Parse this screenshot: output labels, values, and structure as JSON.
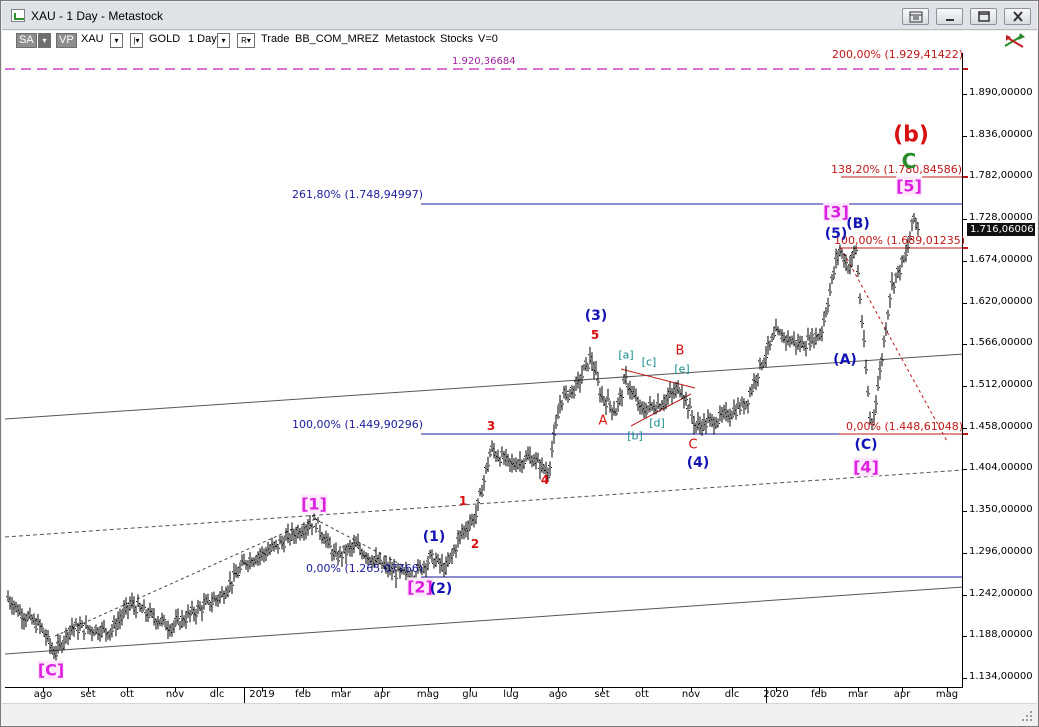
{
  "window": {
    "title": "XAU - 1 Day - Metastock"
  },
  "toolbar": {
    "sa_label": "SA",
    "vp_label": "VP",
    "symbol": "XAU",
    "security_name": "GOLD",
    "period": "1 Day",
    "r_label": "R",
    "mode": "Trade",
    "source": "BB_COM_MREZ",
    "app_name": "Metastock",
    "category": "Stocks",
    "volume": "V=0"
  },
  "chart": {
    "last_price": "1.716,06006",
    "y_labels": [
      "1.890,00000",
      "1.836,00000",
      "1.782,00000",
      "1.728,00000",
      "1.674,00000",
      "1.620,00000",
      "1.566,00000",
      "1.512,00000",
      "1.458,00000",
      "1.404,00000",
      "1.350,00000",
      "1.296,00000",
      "1.242,00000",
      "1.188,00000",
      "1.134,00000"
    ],
    "x_labels": [
      "ago",
      "set",
      "ott",
      "nov",
      "dic",
      "2019",
      "feb",
      "mar",
      "apr",
      "mag",
      "giu",
      "lug",
      "ago",
      "set",
      "ott",
      "nov",
      "dic",
      "2020",
      "feb",
      "mar",
      "apr",
      "mag"
    ],
    "fib_labels": {
      "f200": "200,00% (1.929,41422)",
      "f1920": "1.920,36684",
      "f2618": "261,80% (1.748,94997)",
      "f1382": "138,20% (1.780,84586)",
      "f100b": "100,00% (1.689,01235)",
      "f100": "100,00% (1.449,90296)",
      "f0": "0,00% (1.265,07766)",
      "f0b": "0,00% (1.448,61048)"
    },
    "waves": {
      "C_bracket": "[C]",
      "w1_bracket": "[1]",
      "w2_bracket": "[2]",
      "w3_bracket": "[3]",
      "w4_bracket": "[4]",
      "w5_bracket": "[5]",
      "w1_paren": "(1)",
      "w2_paren": "(2)",
      "w3_paren": "(3)",
      "w4_paren": "(4)",
      "w5_paren": "(5)",
      "A_paren": "(A)",
      "B_paren": "(B)",
      "C_paren": "(C)",
      "b_paren": "(b)",
      "big_C": "C",
      "r1": "1",
      "r2": "2",
      "r3": "3",
      "r4": "4",
      "r5": "5",
      "rA": "A",
      "rB": "B",
      "rC": "C",
      "ta": "[a]",
      "tb": "[b]",
      "tc": "[c]",
      "td": "[d]",
      "te": "[e]"
    }
  },
  "colors": {
    "price_bars": "#000000",
    "fib_blue": "#1c1c9c",
    "fib_red": "#c01818",
    "magenta": "#e020e0",
    "wave_blue": "#1414b4",
    "wave_red": "#d81010",
    "teal": "#138c8c",
    "green": "#2a8a2a"
  }
}
